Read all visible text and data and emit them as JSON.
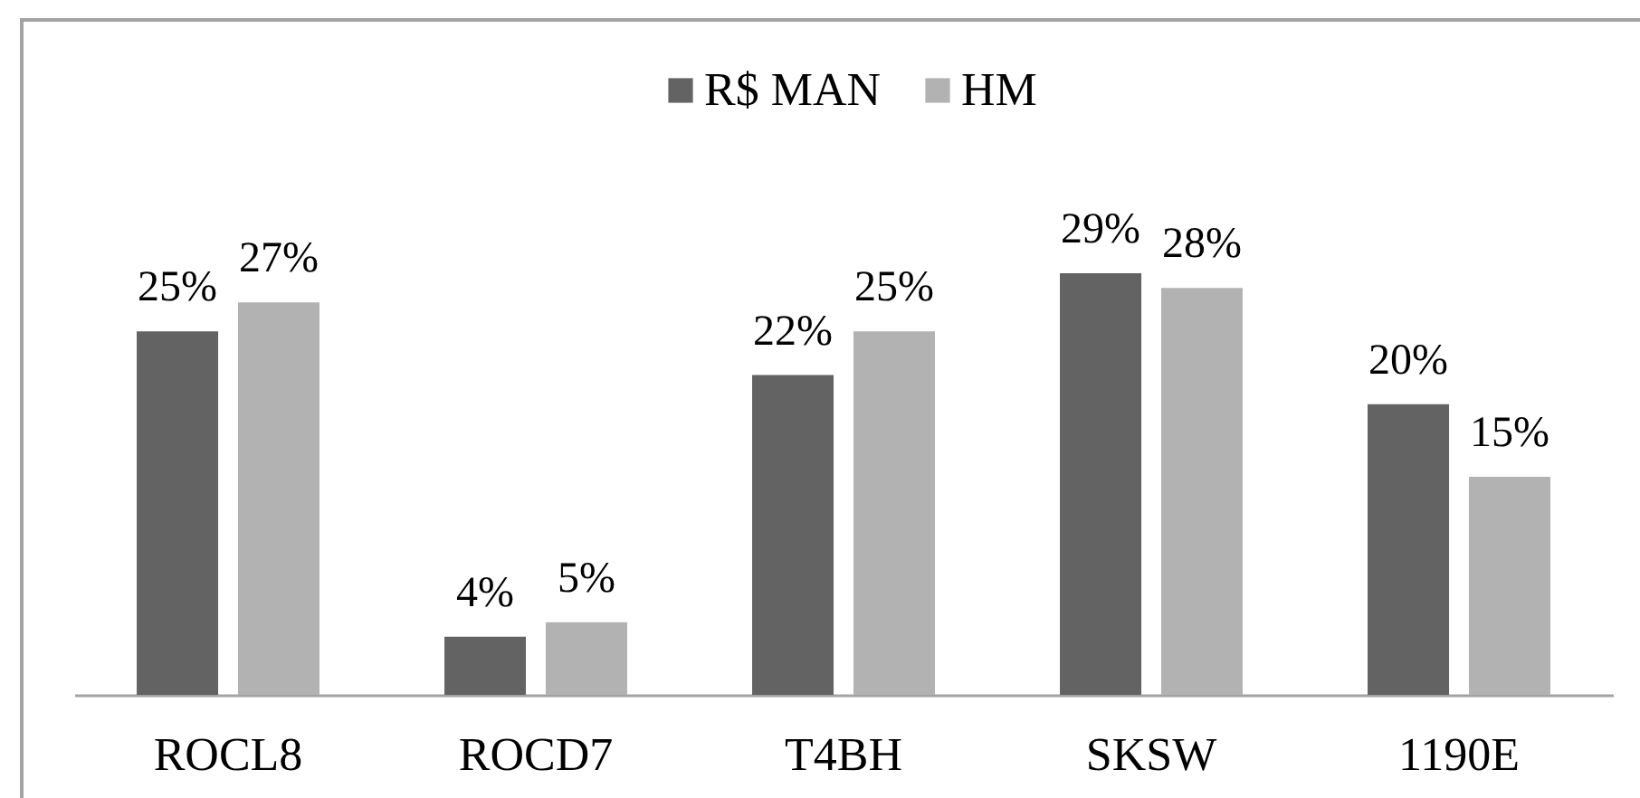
{
  "chart_data": {
    "type": "bar",
    "categories": [
      "ROCL8",
      "ROCD7",
      "T4BH",
      "SKSW",
      "1190E"
    ],
    "series": [
      {
        "name": "R$ MAN",
        "color": "#636363",
        "values": [
          25,
          4,
          22,
          29,
          20
        ],
        "value_labels": [
          "25%",
          "4%",
          "22%",
          "29%",
          "20%"
        ]
      },
      {
        "name": "HM",
        "color": "#b2b2b2",
        "values": [
          27,
          5,
          25,
          28,
          15
        ],
        "value_labels": [
          "27%",
          "5%",
          "25%",
          "28%",
          "15%"
        ]
      }
    ],
    "legend": "top",
    "tick_labels": "x"
  }
}
